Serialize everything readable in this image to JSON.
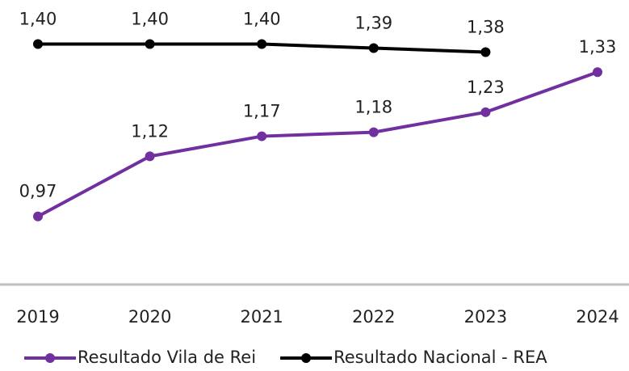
{
  "chart_data": {
    "type": "line",
    "categories": [
      "2019",
      "2020",
      "2021",
      "2022",
      "2023",
      "2024"
    ],
    "series": [
      {
        "name": "Resultado Vila de Rei",
        "color": "#7030a0",
        "values": [
          0.97,
          1.12,
          1.17,
          1.18,
          1.23,
          1.33
        ],
        "value_labels": [
          "0,97",
          "1,12",
          "1,17",
          "1,18",
          "1,23",
          "1,33"
        ]
      },
      {
        "name": "Resultado Nacional - REA",
        "color": "#000000",
        "values": [
          1.4,
          1.4,
          1.4,
          1.39,
          1.38,
          null
        ],
        "value_labels": [
          "1,40",
          "1,40",
          "1,40",
          "1,39",
          "1,38",
          null
        ]
      }
    ],
    "ylim": [
      0.8,
      1.51
    ],
    "grid": false
  }
}
